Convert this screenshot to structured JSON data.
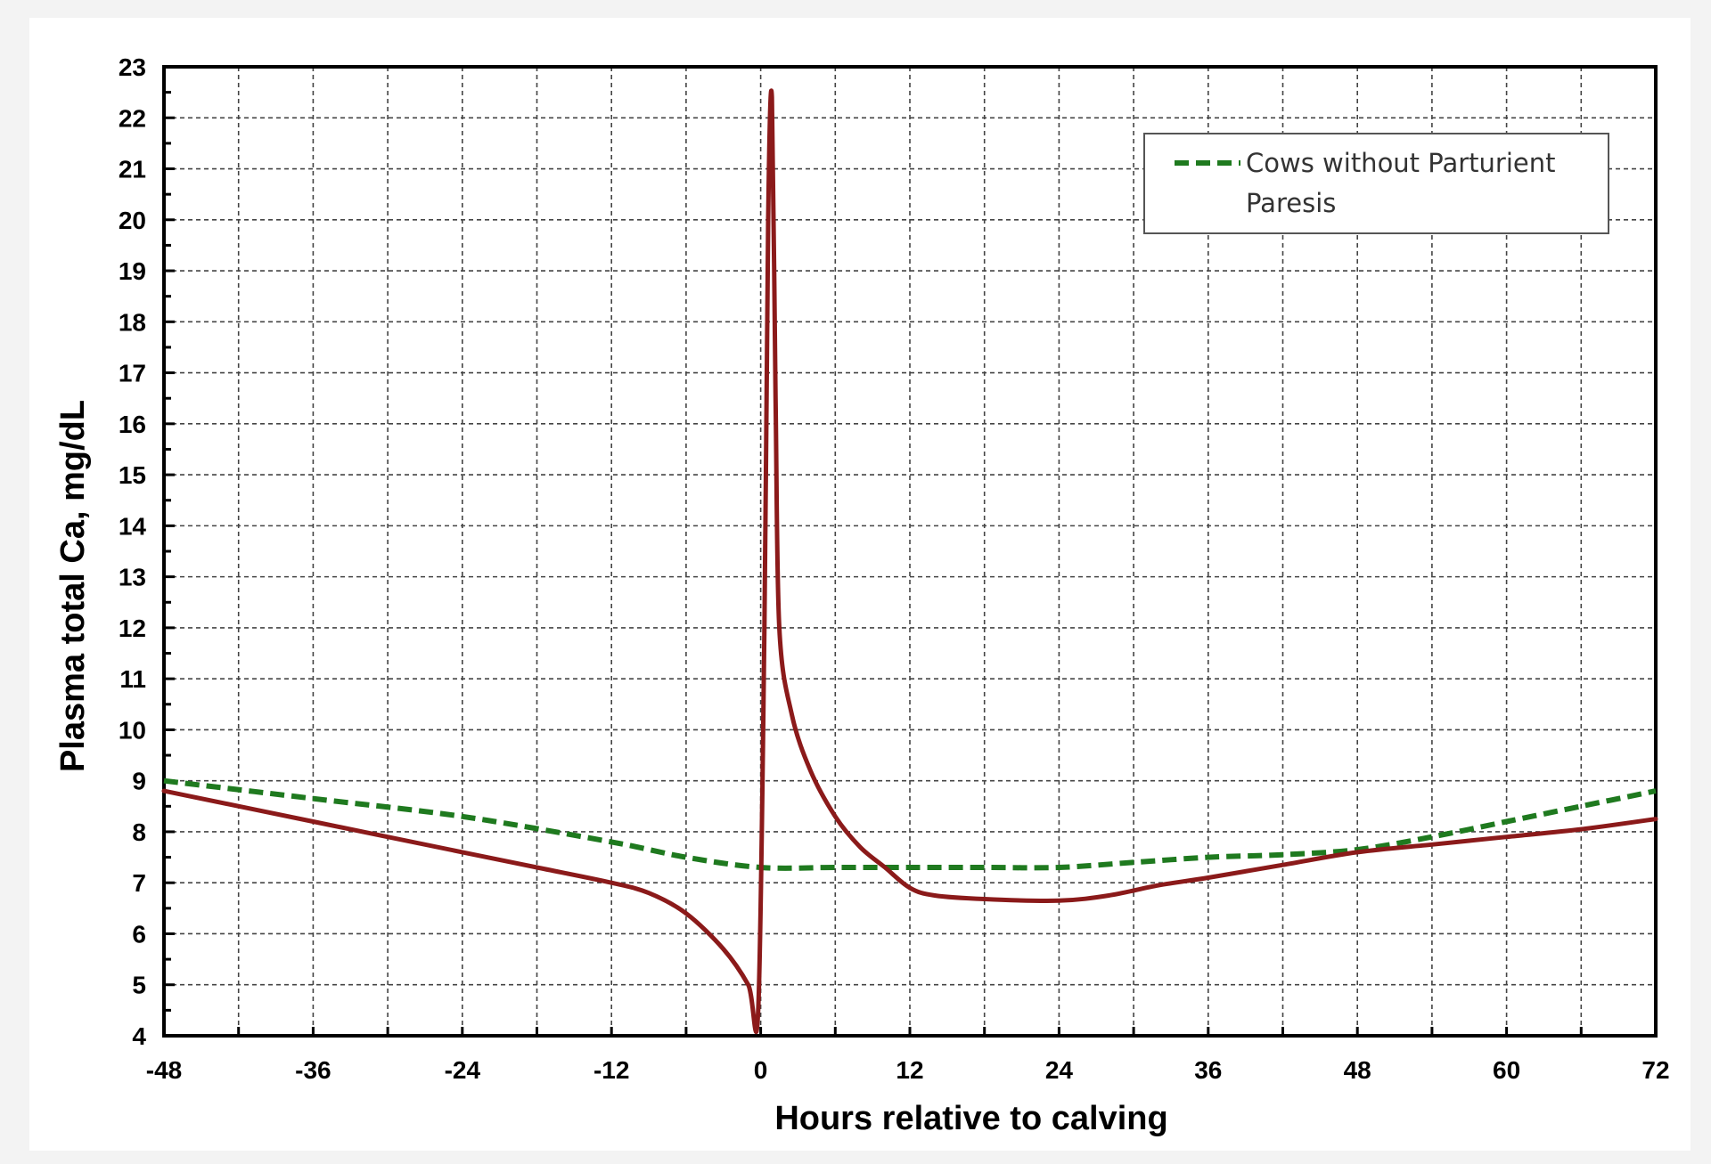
{
  "chart_data": {
    "type": "line",
    "title": "",
    "xlabel": "Hours relative to calving",
    "ylabel": "Plasma total Ca, mg/dL",
    "xlim": [
      -48,
      72
    ],
    "ylim": [
      4,
      23
    ],
    "x_ticks": [
      -48,
      -36,
      -24,
      -12,
      0,
      12,
      24,
      36,
      48,
      60,
      72
    ],
    "y_ticks": [
      4,
      5,
      6,
      7,
      8,
      9,
      10,
      11,
      12,
      13,
      14,
      15,
      16,
      17,
      18,
      19,
      20,
      21,
      22,
      23
    ],
    "grid": true,
    "legend": {
      "placement": "top-right",
      "entries": [
        {
          "series": 0,
          "line1": "Cows without Parturient",
          "line2": "Paresis"
        }
      ]
    },
    "series": [
      {
        "name": "Cows without Parturient Paresis",
        "color": "#1f7a1f",
        "style": "dashed",
        "points": [
          [
            -48,
            9.0
          ],
          [
            -36,
            8.65
          ],
          [
            -24,
            8.3
          ],
          [
            -12,
            7.8
          ],
          [
            -6,
            7.5
          ],
          [
            0,
            7.3
          ],
          [
            6,
            7.3
          ],
          [
            12,
            7.3
          ],
          [
            18,
            7.3
          ],
          [
            24,
            7.3
          ],
          [
            30,
            7.4
          ],
          [
            36,
            7.5
          ],
          [
            42,
            7.55
          ],
          [
            48,
            7.65
          ],
          [
            54,
            7.9
          ],
          [
            60,
            8.2
          ],
          [
            66,
            8.5
          ],
          [
            72,
            8.8
          ]
        ]
      },
      {
        "color": "#8b1a1a",
        "style": "solid",
        "points": [
          [
            -48,
            8.8
          ],
          [
            -36,
            8.2
          ],
          [
            -24,
            7.6
          ],
          [
            -18,
            7.3
          ],
          [
            -12,
            7.0
          ],
          [
            -9,
            6.8
          ],
          [
            -6,
            6.4
          ],
          [
            -3,
            5.7
          ],
          [
            -1,
            5.0
          ],
          [
            -0.2,
            4.5
          ],
          [
            0.3,
            12.0
          ],
          [
            0.6,
            20.0
          ],
          [
            0.9,
            22.4
          ],
          [
            1.2,
            16.5
          ],
          [
            1.5,
            12.0
          ],
          [
            2.5,
            10.3
          ],
          [
            4,
            9.2
          ],
          [
            6,
            8.3
          ],
          [
            8,
            7.7
          ],
          [
            10,
            7.3
          ],
          [
            12,
            6.9
          ],
          [
            14,
            6.75
          ],
          [
            18,
            6.68
          ],
          [
            24,
            6.65
          ],
          [
            28,
            6.75
          ],
          [
            32,
            6.95
          ],
          [
            36,
            7.1
          ],
          [
            42,
            7.35
          ],
          [
            48,
            7.6
          ],
          [
            54,
            7.75
          ],
          [
            60,
            7.9
          ],
          [
            66,
            8.05
          ],
          [
            72,
            8.25
          ]
        ]
      }
    ]
  }
}
